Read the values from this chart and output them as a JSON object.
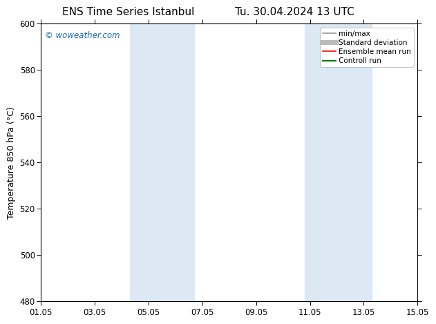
{
  "title_left": "ENS Time Series Istanbul",
  "title_right": "Tu. 30.04.2024 13 UTC",
  "ylabel": "Temperature 850 hPa (°C)",
  "xlim_num": [
    0,
    14
  ],
  "ylim": [
    480,
    600
  ],
  "yticks": [
    480,
    500,
    520,
    540,
    560,
    580,
    600
  ],
  "xticks_pos": [
    0,
    2,
    4,
    6,
    8,
    10,
    12,
    14
  ],
  "xtick_labels": [
    "01.05",
    "03.05",
    "05.05",
    "07.05",
    "09.05",
    "11.05",
    "13.05",
    "15.05"
  ],
  "shaded_bands": [
    {
      "xmin": 3.3,
      "xmax": 5.7,
      "color": "#dce9f5"
    },
    {
      "xmin": 9.8,
      "xmax": 12.3,
      "color": "#dce9f5"
    }
  ],
  "watermark_text": "© woweather.com",
  "watermark_color": "#1a6ab5",
  "legend_entries": [
    {
      "label": "min/max",
      "color": "#999999",
      "lw": 1.2
    },
    {
      "label": "Standard deviation",
      "color": "#bbbbbb",
      "lw": 5
    },
    {
      "label": "Ensemble mean run",
      "color": "red",
      "lw": 1.2
    },
    {
      "label": "Controll run",
      "color": "green",
      "lw": 1.5
    }
  ],
  "bg_color": "#ffffff",
  "title_fontsize": 11,
  "label_fontsize": 9,
  "tick_fontsize": 8.5,
  "watermark_fontsize": 8.5,
  "legend_fontsize": 7.5
}
